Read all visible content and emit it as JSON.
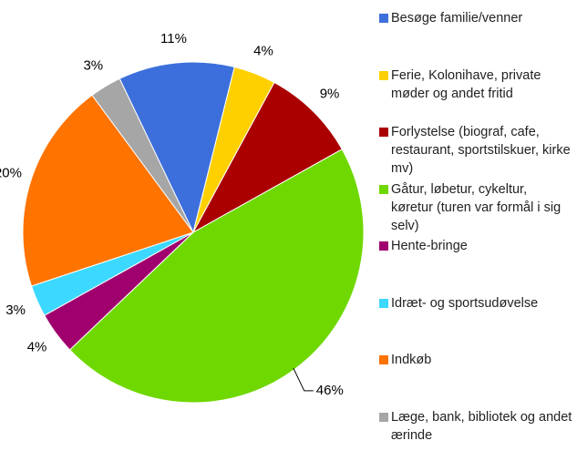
{
  "chart_data": {
    "type": "pie",
    "categories": [
      "Besøge familie/venner",
      "Ferie, Kolonihave, private møder og andet fritid",
      "Forlystelse (biograf, cafe, restaurant, sportstilskuer, kirke mv)",
      "Gåtur, løbetur, cykeltur, køretur (turen var formål i sig selv)",
      "Hente-bringe",
      "Idræt- og sportsudøvelse",
      "Indkøb",
      "Læge, bank, bibliotek og andet ærinde"
    ],
    "values": [
      11,
      4,
      9,
      46,
      4,
      3,
      20,
      3
    ],
    "value_labels": [
      "11%",
      "4%",
      "9%",
      "46%",
      "4%",
      "3%",
      "20%",
      "3%"
    ],
    "colors": [
      "#3c6fdc",
      "#ffd000",
      "#aa0000",
      "#6fd800",
      "#a0006e",
      "#3cd8ff",
      "#ff7300",
      "#a6a6a6"
    ],
    "legend": "right"
  }
}
